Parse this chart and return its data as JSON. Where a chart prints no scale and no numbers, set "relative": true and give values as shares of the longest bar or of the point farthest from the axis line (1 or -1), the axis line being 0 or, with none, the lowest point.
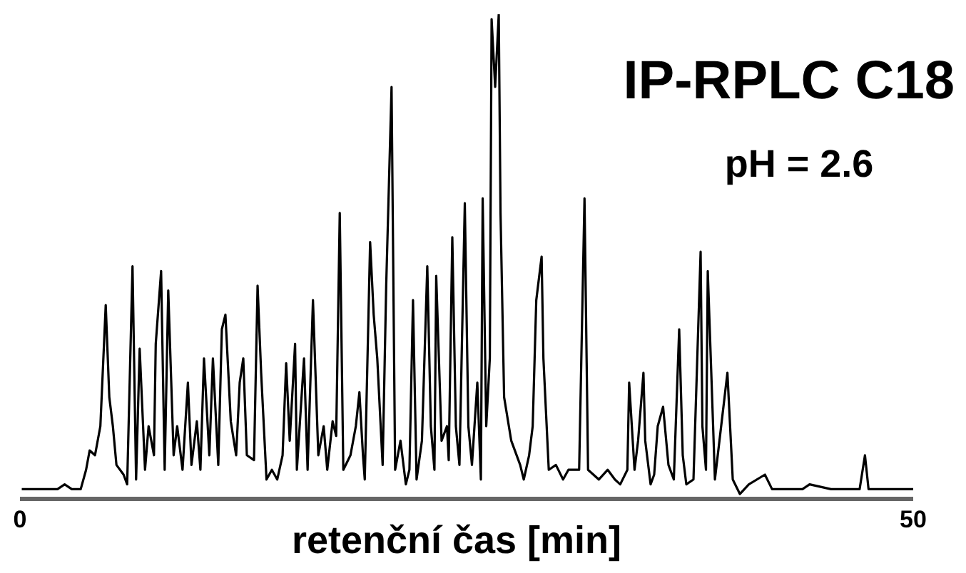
{
  "chart_data": {
    "type": "line",
    "title": "IP-RPLC C18",
    "subtitle": "pH = 2.6",
    "xlabel": "retenční čas [min]",
    "relative": true,
    "color": "#000000",
    "xlim": [
      0,
      50
    ],
    "xticks": [
      0,
      50
    ],
    "x": [
      0.1,
      2.1,
      2.5,
      2.9,
      3.4,
      3.7,
      3.9,
      4.2,
      4.5,
      4.8,
      5.0,
      5.2,
      5.4,
      5.8,
      6.0,
      6.3,
      6.5,
      6.7,
      7.0,
      7.2,
      7.5,
      7.6,
      7.9,
      8.1,
      8.3,
      8.6,
      8.8,
      9.1,
      9.4,
      9.6,
      9.9,
      10.1,
      10.3,
      10.6,
      10.8,
      11.1,
      11.3,
      11.5,
      11.8,
      12.1,
      12.3,
      12.5,
      12.7,
      13.1,
      13.3,
      13.5,
      13.8,
      14.1,
      14.4,
      14.7,
      14.9,
      15.1,
      15.4,
      15.5,
      15.9,
      16.1,
      16.4,
      16.7,
      17.0,
      17.2,
      17.5,
      17.7,
      17.9,
      18.1,
      18.5,
      18.8,
      19.0,
      19.2,
      19.3,
      19.6,
      19.8,
      20.0,
      20.3,
      20.5,
      20.8,
      21.0,
      21.3,
      21.6,
      21.8,
      22.0,
      22.2,
      22.5,
      22.8,
      23.0,
      23.2,
      23.3,
      23.6,
      23.9,
      24.0,
      24.2,
      24.4,
      24.6,
      24.9,
      25.1,
      25.3,
      25.6,
      25.8,
      25.9,
      26.1,
      26.3,
      26.4,
      26.6,
      26.8,
      26.9,
      27.1,
      27.5,
      28.0,
      28.2,
      28.5,
      28.7,
      28.9,
      29.2,
      29.3,
      29.6,
      30.0,
      30.4,
      30.7,
      31.3,
      31.6,
      31.8,
      32.4,
      32.9,
      33.3,
      33.6,
      34.0,
      34.1,
      34.4,
      34.6,
      34.9,
      35.0,
      35.3,
      35.5,
      35.7,
      36.0,
      36.3,
      36.6,
      36.9,
      37.1,
      37.3,
      37.7,
      38.1,
      38.2,
      38.4,
      38.5,
      38.8,
      38.9,
      39.6,
      39.9,
      40.3,
      40.8,
      41.7,
      42.1,
      43.8,
      44.2,
      45.4,
      47.0,
      47.3,
      47.5,
      48.6,
      50.0
    ],
    "values": [
      0.02,
      0.02,
      0.03,
      0.02,
      0.02,
      0.06,
      0.1,
      0.09,
      0.15,
      0.4,
      0.21,
      0.15,
      0.07,
      0.05,
      0.03,
      0.48,
      0.04,
      0.31,
      0.06,
      0.15,
      0.09,
      0.32,
      0.47,
      0.06,
      0.43,
      0.09,
      0.15,
      0.06,
      0.24,
      0.07,
      0.16,
      0.06,
      0.29,
      0.09,
      0.29,
      0.07,
      0.35,
      0.38,
      0.16,
      0.09,
      0.24,
      0.29,
      0.09,
      0.08,
      0.44,
      0.26,
      0.04,
      0.06,
      0.04,
      0.09,
      0.28,
      0.12,
      0.32,
      0.06,
      0.29,
      0.06,
      0.41,
      0.09,
      0.15,
      0.06,
      0.16,
      0.13,
      0.59,
      0.06,
      0.09,
      0.15,
      0.22,
      0.09,
      0.04,
      0.53,
      0.38,
      0.29,
      0.07,
      0.44,
      0.85,
      0.06,
      0.12,
      0.03,
      0.06,
      0.41,
      0.04,
      0.12,
      0.48,
      0.15,
      0.06,
      0.46,
      0.12,
      0.15,
      0.08,
      0.54,
      0.15,
      0.07,
      0.61,
      0.15,
      0.07,
      0.24,
      0.04,
      0.62,
      0.15,
      0.29,
      0.99,
      0.85,
      1,
      0.59,
      0.21,
      0.12,
      0.07,
      0.04,
      0.09,
      0.15,
      0.41,
      0.5,
      0.29,
      0.06,
      0.07,
      0.04,
      0.06,
      0.06,
      0.62,
      0.06,
      0.04,
      0.06,
      0.04,
      0.03,
      0.06,
      0.24,
      0.06,
      0.12,
      0.26,
      0.12,
      0.03,
      0.05,
      0.15,
      0.19,
      0.07,
      0.04,
      0.35,
      0.09,
      0.03,
      0.04,
      0.51,
      0.15,
      0.06,
      0.47,
      0.15,
      0.04,
      0.26,
      0.04,
      0.01,
      0.03,
      0.05,
      0.02,
      0.02,
      0.03,
      0.02,
      0.02,
      0.09,
      0.02,
      0.02,
      0.02
    ]
  }
}
